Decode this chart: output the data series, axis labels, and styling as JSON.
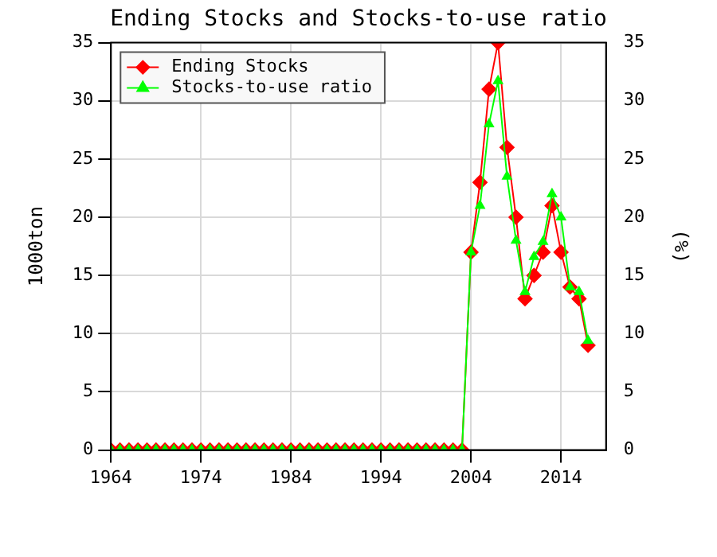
{
  "chart_data": {
    "type": "line",
    "title": "Ending Stocks and Stocks-to-use ratio",
    "ylabel": "1000ton",
    "y2label": "(%)",
    "x": [
      1964,
      1965,
      1966,
      1967,
      1968,
      1969,
      1970,
      1971,
      1972,
      1973,
      1974,
      1975,
      1976,
      1977,
      1978,
      1979,
      1980,
      1981,
      1982,
      1983,
      1984,
      1985,
      1986,
      1987,
      1988,
      1989,
      1990,
      1991,
      1992,
      1993,
      1994,
      1995,
      1996,
      1997,
      1998,
      1999,
      2000,
      2001,
      2002,
      2003,
      2004,
      2005,
      2006,
      2007,
      2008,
      2009,
      2010,
      2011,
      2012,
      2013,
      2014,
      2015,
      2016,
      2017
    ],
    "series": [
      {
        "name": "Ending Stocks",
        "color": "#ff0000",
        "marker": "diamond",
        "values": [
          0,
          0,
          0,
          0,
          0,
          0,
          0,
          0,
          0,
          0,
          0,
          0,
          0,
          0,
          0,
          0,
          0,
          0,
          0,
          0,
          0,
          0,
          0,
          0,
          0,
          0,
          0,
          0,
          0,
          0,
          0,
          0,
          0,
          0,
          0,
          0,
          0,
          0,
          0,
          0,
          17,
          23,
          31,
          35,
          26,
          20,
          13,
          15,
          17,
          21,
          17,
          14,
          13,
          9
        ]
      },
      {
        "name": "Stocks-to-use ratio",
        "color": "#00ff00",
        "marker": "triangle",
        "axis": "y2",
        "values": [
          0,
          0,
          0,
          0,
          0,
          0,
          0,
          0,
          0,
          0,
          0,
          0,
          0,
          0,
          0,
          0,
          0,
          0,
          0,
          0,
          0,
          0,
          0,
          0,
          0,
          0,
          0,
          0,
          0,
          0,
          0,
          0,
          0,
          0,
          0,
          0,
          0,
          0,
          0,
          0,
          17,
          21,
          28,
          31.7,
          23.5,
          18,
          13.6,
          16.6,
          17.9,
          22,
          20,
          14,
          13.6,
          9.4
        ]
      }
    ],
    "xlim": [
      1964,
      2019
    ],
    "xticks": [
      1964,
      1974,
      1984,
      1994,
      2004,
      2014
    ],
    "ylim": [
      0,
      35
    ],
    "yticks": [
      0,
      5,
      10,
      15,
      20,
      25,
      30,
      35
    ],
    "y2lim": [
      0,
      35
    ],
    "y2ticks": [
      0,
      5,
      10,
      15,
      20,
      25,
      30,
      35
    ],
    "grid": true,
    "legend": "top left"
  }
}
